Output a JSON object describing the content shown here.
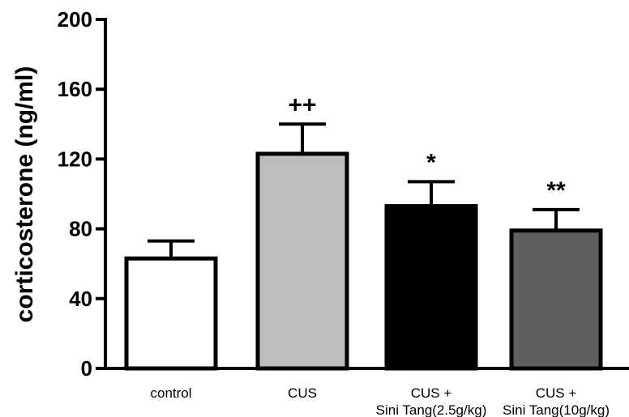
{
  "chart_data": {
    "type": "bar",
    "categories": [
      [
        "control"
      ],
      [
        "CUS"
      ],
      [
        "CUS +",
        "Sini Tang(2.5g/kg)"
      ],
      [
        "CUS +",
        "Sini Tang(10g/kg)"
      ]
    ],
    "values": [
      63,
      123,
      93,
      79
    ],
    "error": [
      10,
      17,
      14,
      12
    ],
    "annotations": [
      "",
      "++",
      "*",
      "**"
    ],
    "bar_colors": [
      "#ffffff",
      "#bdbdbd",
      "#000000",
      "#5f5f5f"
    ],
    "ylabel": "corticosterone (ng/ml)",
    "ylim": [
      0,
      200
    ],
    "yticks": [
      0,
      40,
      80,
      120,
      160,
      200
    ],
    "grid": false
  }
}
